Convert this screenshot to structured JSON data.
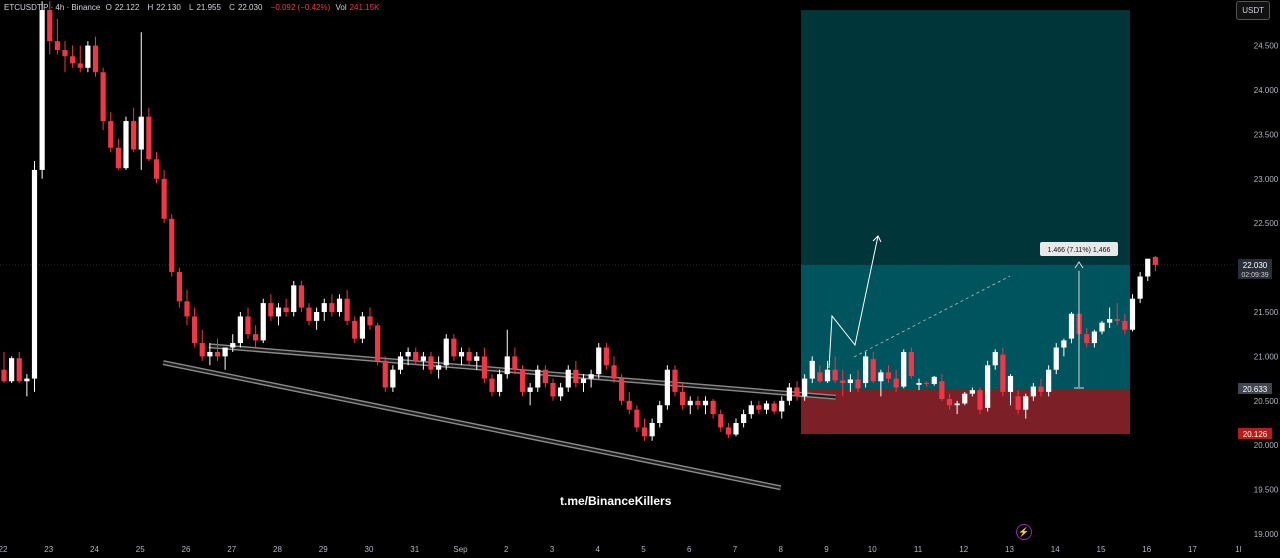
{
  "header": {
    "symbol": "ETCUSDT.P · 4h · Binance",
    "open_label": "O",
    "open": "22.122",
    "high_label": "H",
    "high": "22.130",
    "low_label": "L",
    "low": "21.955",
    "close_label": "C",
    "close": "22.030",
    "change": "−0.092 (−0.42%)",
    "vol_label": "Vol",
    "vol": "241.15K"
  },
  "currency_button": "USDT",
  "watermark": "t.me/BinanceKillers",
  "measure_label": "1.466 (7.11%) 1,466",
  "colors": {
    "up": "#ffffff",
    "down": "#f23645",
    "profit": "#00545d",
    "profit_upper": "#00353a",
    "loss": "#7c1f26"
  },
  "chart_data": {
    "type": "candlestick",
    "title": "",
    "xlabel": "",
    "ylabel": "",
    "ylim": [
      19.0,
      25.0
    ],
    "y_ticks": [
      "24.500",
      "24.000",
      "23.500",
      "23.000",
      "22.500",
      "21.500",
      "21.000",
      "20.500",
      "20.000",
      "19.500",
      "19.000"
    ],
    "x_ticks": [
      "22",
      "23",
      "24",
      "25",
      "26",
      "27",
      "28",
      "29",
      "30",
      "31",
      "Sep",
      "2",
      "3",
      "4",
      "5",
      "6",
      "7",
      "8",
      "9",
      "10",
      "11",
      "12",
      "13",
      "14",
      "15",
      "16",
      "17",
      "1l"
    ],
    "price_labels": [
      {
        "value": 22.03,
        "text": "22.030",
        "sub": "02:09:39",
        "kind": "last"
      },
      {
        "value": 20.633,
        "text": "20.633",
        "kind": "entry"
      },
      {
        "value": 20.126,
        "text": "20.126",
        "kind": "stop"
      }
    ],
    "position": {
      "entry": 20.633,
      "stop": 20.126,
      "target": 24.9
    },
    "channel": {
      "upper": [
        [
          26.5,
          21.12
        ],
        [
          9.2,
          20.54
        ]
      ],
      "lower": [
        [
          25.5,
          20.93
        ],
        [
          8.0,
          19.52
        ]
      ]
    },
    "candles": [
      {
        "o": 20.82,
        "h": 20.9,
        "l": 20.7,
        "c": 20.72
      },
      {
        "o": 20.72,
        "h": 20.95,
        "l": 20.7,
        "c": 20.85
      },
      {
        "o": 20.85,
        "h": 21.0,
        "l": 20.7,
        "c": 20.73
      },
      {
        "o": 20.73,
        "h": 20.85,
        "l": 20.55,
        "c": 20.7
      },
      {
        "o": 20.7,
        "h": 20.8,
        "l": 20.6,
        "c": 20.74
      },
      {
        "o": 20.74,
        "h": 20.85,
        "l": 20.6,
        "c": 20.64
      },
      {
        "o": 20.7,
        "h": 21.05,
        "l": 20.65,
        "c": 21.0
      },
      {
        "o": 20.97,
        "h": 21.05,
        "l": 20.7,
        "c": 20.72
      },
      {
        "o": 20.72,
        "h": 20.85,
        "l": 20.55,
        "c": 20.82
      },
      {
        "o": 20.82,
        "h": 20.9,
        "l": 20.7,
        "c": 20.75
      },
      {
        "o": 20.75,
        "h": 20.85,
        "l": 20.6,
        "c": 20.65
      },
      {
        "o": 20.66,
        "h": 21.08,
        "l": 20.64,
        "c": 21.05
      },
      {
        "o": 21.05,
        "h": 21.1,
        "l": 20.75,
        "c": 20.78
      },
      {
        "o": 20.68,
        "h": 20.75,
        "l": 20.62,
        "c": 20.7
      },
      {
        "o": 20.7,
        "h": 20.72,
        "l": 20.66,
        "c": 20.69
      },
      {
        "o": 20.69,
        "h": 20.78,
        "l": 20.67,
        "c": 20.77
      },
      {
        "o": 20.72,
        "h": 20.8,
        "l": 20.5,
        "c": 20.52
      },
      {
        "o": 20.52,
        "h": 20.58,
        "l": 20.4,
        "c": 20.45
      },
      {
        "o": 20.45,
        "h": 20.5,
        "l": 20.35,
        "c": 20.47
      },
      {
        "o": 20.47,
        "h": 20.6,
        "l": 20.45,
        "c": 20.58
      },
      {
        "o": 20.58,
        "h": 20.65,
        "l": 20.55,
        "c": 20.62
      },
      {
        "o": 20.62,
        "h": 20.65,
        "l": 20.35,
        "c": 20.4
      },
      {
        "o": 20.42,
        "h": 20.95,
        "l": 20.38,
        "c": 20.9
      },
      {
        "o": 20.9,
        "h": 21.08,
        "l": 20.85,
        "c": 21.05
      },
      {
        "o": 21.02,
        "h": 21.1,
        "l": 20.55,
        "c": 20.6
      },
      {
        "o": 20.6,
        "h": 20.8,
        "l": 20.45,
        "c": 20.78
      },
      {
        "o": 20.55,
        "h": 20.62,
        "l": 20.35,
        "c": 20.4
      },
      {
        "o": 20.4,
        "h": 20.58,
        "l": 20.3,
        "c": 20.55
      },
      {
        "o": 20.55,
        "h": 20.7,
        "l": 20.5,
        "c": 20.66
      },
      {
        "o": 20.66,
        "h": 20.75,
        "l": 20.55,
        "c": 20.6
      },
      {
        "o": 20.6,
        "h": 20.9,
        "l": 20.55,
        "c": 20.85
      },
      {
        "o": 20.85,
        "h": 21.15,
        "l": 20.8,
        "c": 21.1
      },
      {
        "o": 21.1,
        "h": 21.2,
        "l": 21.0,
        "c": 21.18
      },
      {
        "o": 21.2,
        "h": 21.5,
        "l": 21.15,
        "c": 21.48
      },
      {
        "o": 21.48,
        "h": 21.5,
        "l": 21.2,
        "c": 21.25
      },
      {
        "o": 21.25,
        "h": 21.32,
        "l": 21.1,
        "c": 21.15
      },
      {
        "o": 21.15,
        "h": 21.3,
        "l": 21.1,
        "c": 21.28
      },
      {
        "o": 21.28,
        "h": 21.4,
        "l": 21.25,
        "c": 21.38
      },
      {
        "o": 21.38,
        "h": 21.55,
        "l": 21.32,
        "c": 21.42
      },
      {
        "o": 21.42,
        "h": 21.6,
        "l": 21.35,
        "c": 21.4
      },
      {
        "o": 21.4,
        "h": 21.48,
        "l": 21.25,
        "c": 21.3
      },
      {
        "o": 21.3,
        "h": 21.7,
        "l": 21.28,
        "c": 21.65
      },
      {
        "o": 21.65,
        "h": 21.95,
        "l": 21.6,
        "c": 21.9
      },
      {
        "o": 21.9,
        "h": 22.1,
        "l": 21.85,
        "c": 22.1
      },
      {
        "o": 22.12,
        "h": 22.13,
        "l": 21.96,
        "c": 22.03
      }
    ]
  }
}
